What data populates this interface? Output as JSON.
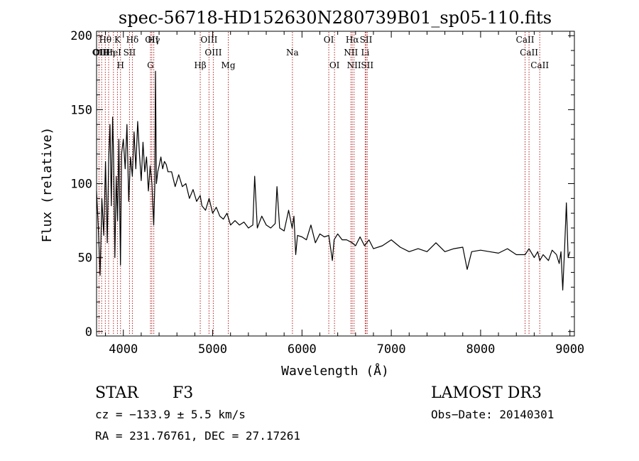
{
  "title": "spec-56718-HD152630N280739B01_sp05-110.fits",
  "chart_data": {
    "type": "line",
    "xlabel": "Wavelength (Å)",
    "ylabel": "Flux (relative)",
    "xlim": [
      3700,
      9050
    ],
    "ylim": [
      -3,
      203
    ],
    "xticks": [
      4000,
      5000,
      6000,
      7000,
      8000,
      9000
    ],
    "yticks": [
      0,
      50,
      100,
      150,
      200
    ],
    "grid": false,
    "line_color": "#000000",
    "marker_color": "#b22222",
    "series": [
      {
        "x": [
          3700,
          3720,
          3740,
          3760,
          3780,
          3800,
          3820,
          3835,
          3850,
          3865,
          3880,
          3890,
          3905,
          3920,
          3935,
          3950,
          3968,
          3980,
          4000,
          4020,
          4040,
          4060,
          4080,
          4101,
          4120,
          4140,
          4160,
          4180,
          4200,
          4220,
          4240,
          4260,
          4280,
          4300,
          4320,
          4340,
          4352,
          4360,
          4370,
          4385,
          4400,
          4420,
          4440,
          4460,
          4480,
          4500,
          4540,
          4580,
          4620,
          4660,
          4700,
          4740,
          4780,
          4820,
          4861,
          4880,
          4920,
          4960,
          5000,
          5040,
          5080,
          5120,
          5160,
          5200,
          5250,
          5300,
          5350,
          5400,
          5450,
          5470,
          5500,
          5550,
          5600,
          5650,
          5700,
          5720,
          5750,
          5800,
          5850,
          5890,
          5910,
          5930,
          5950,
          6000,
          6050,
          6100,
          6150,
          6200,
          6250,
          6300,
          6340,
          6360,
          6400,
          6450,
          6500,
          6563,
          6600,
          6650,
          6700,
          6750,
          6800,
          6900,
          7000,
          7100,
          7200,
          7300,
          7400,
          7500,
          7600,
          7700,
          7800,
          7850,
          7900,
          8000,
          8100,
          8200,
          8300,
          8400,
          8498,
          8542,
          8600,
          8640,
          8662,
          8700,
          8760,
          8800,
          8850,
          8880,
          8900,
          8920,
          8940,
          8960,
          8980,
          9000
        ],
        "y": [
          95,
          70,
          38,
          90,
          65,
          115,
          60,
          115,
          140,
          85,
          145,
          120,
          50,
          105,
          75,
          130,
          45,
          120,
          130,
          110,
          140,
          88,
          118,
          105,
          135,
          110,
          142,
          120,
          102,
          128,
          108,
          118,
          95,
          112,
          100,
          72,
          98,
          176,
          100,
          108,
          112,
          118,
          110,
          115,
          113,
          108,
          108,
          98,
          106,
          98,
          100,
          90,
          96,
          88,
          92,
          85,
          82,
          90,
          80,
          84,
          78,
          76,
          80,
          72,
          75,
          72,
          74,
          70,
          72,
          105,
          70,
          78,
          72,
          70,
          73,
          98,
          70,
          68,
          82,
          70,
          78,
          52,
          65,
          64,
          62,
          72,
          60,
          66,
          64,
          65,
          48,
          62,
          66,
          62,
          62,
          60,
          58,
          64,
          58,
          62,
          56,
          58,
          62,
          57,
          54,
          56,
          54,
          60,
          54,
          56,
          57,
          42,
          54,
          55,
          54,
          53,
          56,
          52,
          52,
          56,
          50,
          54,
          48,
          52,
          48,
          55,
          52,
          46,
          54,
          28,
          56,
          87,
          50,
          54
        ]
      }
    ],
    "lines": [
      {
        "label": "Hθ",
        "x": 3798
      },
      {
        "label": "K",
        "x": 3934
      },
      {
        "label": "Hδ",
        "x": 4101
      },
      {
        "label": "OII",
        "x": 4319
      },
      {
        "label": "Hγ",
        "x": 4341
      },
      {
        "label": "OIII",
        "x": 4959
      },
      {
        "label": "OI",
        "x": 6300
      },
      {
        "label": "Hα",
        "x": 6563
      },
      {
        "label": "SII",
        "x": 6717
      },
      {
        "label": "CaII",
        "x": 8498
      },
      {
        "label": "OII",
        "x": 3727
      },
      {
        "label": "HeI",
        "x": 3889
      },
      {
        "label": "SII",
        "x": 4069
      },
      {
        "label": "OIII",
        "x": 5007
      },
      {
        "label": "Na",
        "x": 5893
      },
      {
        "label": "NII",
        "x": 6548
      },
      {
        "label": "Li",
        "x": 6708
      },
      {
        "label": "CaII",
        "x": 8542
      },
      {
        "label": "OIII",
        "x": 3757
      },
      {
        "label": "Hη",
        "x": 3835
      },
      {
        "label": "H",
        "x": 3968
      },
      {
        "label": "G",
        "x": 4304
      },
      {
        "label": "Hβ",
        "x": 4861
      },
      {
        "label": "Mg",
        "x": 5175
      },
      {
        "label": "OI",
        "x": 6364
      },
      {
        "label": "NII",
        "x": 6583
      },
      {
        "label": "SII",
        "x": 6731
      },
      {
        "label": "CaII",
        "x": 8662
      }
    ]
  },
  "info": {
    "class": "STAR",
    "subclass": "F3",
    "survey": "LAMOST DR3",
    "cz": "cz = −133.9 ± 5.5 km/s",
    "obs_date": "Obs−Date: 20140301",
    "coords": "RA = 231.76761, DEC =  27.17261"
  }
}
